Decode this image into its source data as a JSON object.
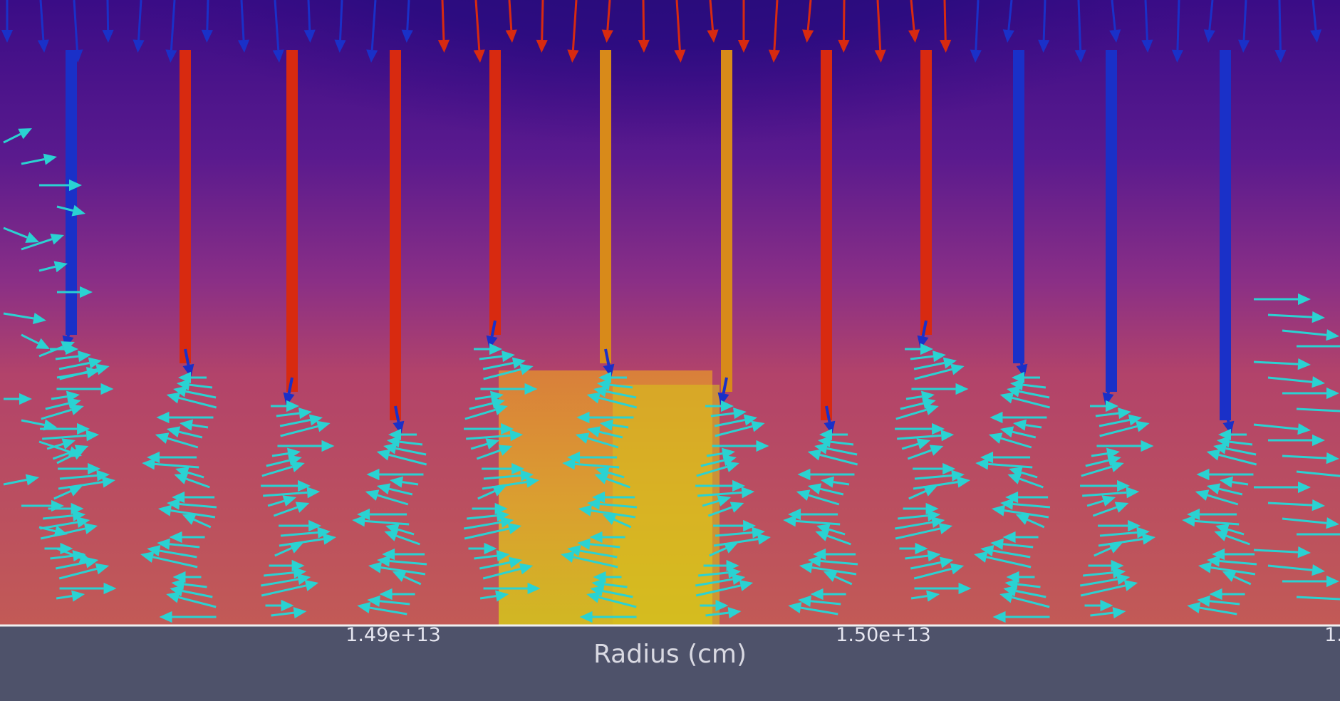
{
  "axis": {
    "title": "Radius (cm)",
    "ticks": [
      "1.49e+13",
      "1.50e+13",
      "1."
    ]
  },
  "colors": {
    "background_panel": "#4e526a",
    "field_low": "#2a0a78",
    "field_mid": "#7a2a8a",
    "field_high_warm": "#b84a62",
    "field_hot": "#d8c01e",
    "arrow_cyan": "#2ad2d2",
    "arrow_red": "#d82a10",
    "arrow_blue": "#1a30c8",
    "axis_line": "#f0f0f0"
  }
}
